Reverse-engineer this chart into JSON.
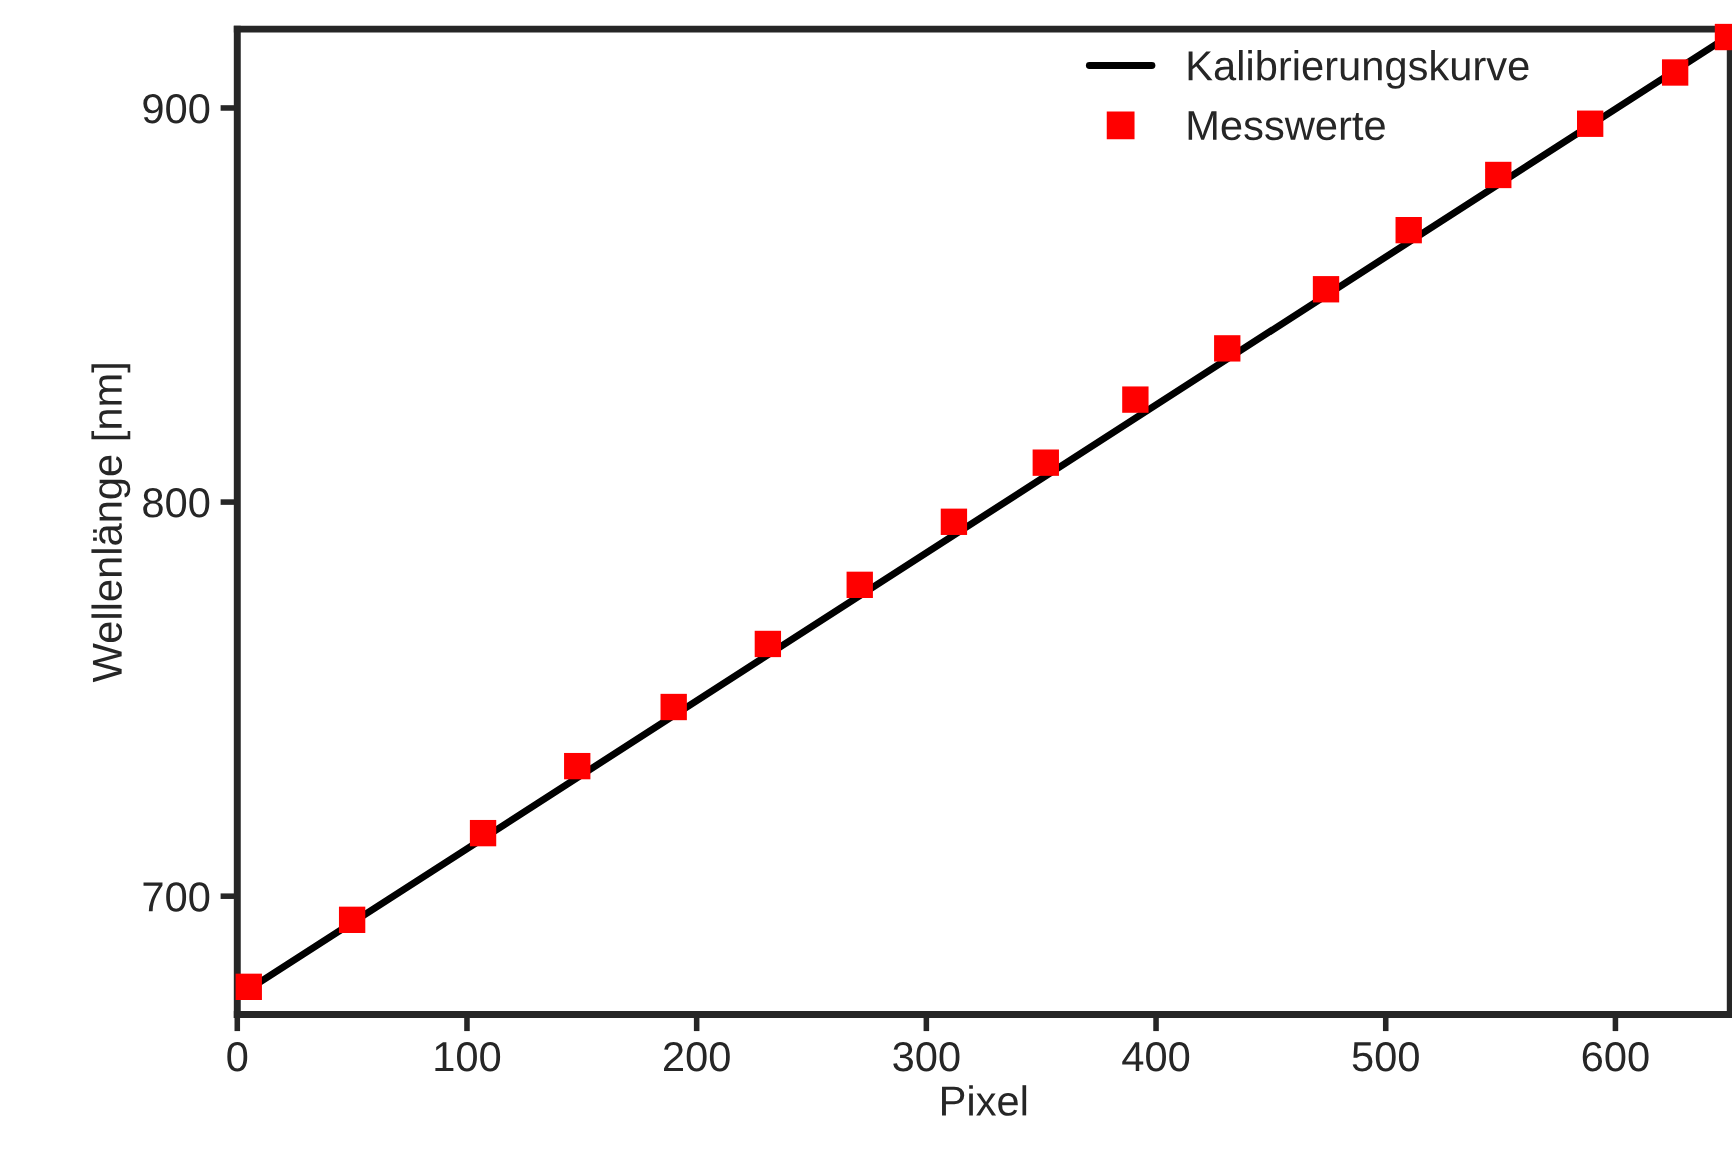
{
  "chart_data": {
    "type": "scatter",
    "xlabel": "Pixel",
    "ylabel": "Wellenlänge [nm]",
    "xlim": [
      0,
      650
    ],
    "ylim": [
      670,
      920
    ],
    "xticks": [
      0,
      100,
      200,
      300,
      400,
      500,
      600
    ],
    "yticks": [
      700,
      800,
      900
    ],
    "grid": false,
    "legend": "top right",
    "series": [
      {
        "name": "Kalibrierungskurve",
        "type": "line",
        "color": "#000000",
        "marker": "none",
        "line_style": "solid",
        "x": [
          0,
          650
        ],
        "values": [
          674.5,
          918.5
        ]
      },
      {
        "name": "Messwerte",
        "color": "#ff0000",
        "marker": "square",
        "x": [
          5,
          50,
          107,
          148,
          190,
          231,
          271,
          312,
          352,
          391,
          431,
          474,
          510,
          549,
          589,
          626,
          649
        ],
        "values": [
          677,
          694,
          716,
          733,
          748,
          764,
          779,
          795,
          810,
          826,
          839,
          854,
          869,
          883,
          896,
          909,
          918
        ]
      }
    ]
  }
}
